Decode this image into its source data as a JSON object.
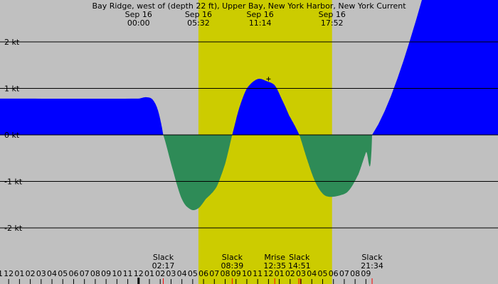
{
  "chart_data": {
    "type": "area",
    "title": "Bay Ridge, west of (depth 22 ft), Upper Bay, New York Harbor, New York Current",
    "unit": "kt",
    "ylim": [
      -2.9,
      2.9
    ],
    "y_ticks": [
      {
        "value": 2,
        "label": "2 kt"
      },
      {
        "value": 1,
        "label": "1 kt"
      },
      {
        "value": 0,
        "label": "0 kt"
      },
      {
        "value": -1,
        "label": "-1 kt"
      },
      {
        "value": -2,
        "label": "-2 kt"
      }
    ],
    "x_range_hours": [
      -12.8,
      33.2
    ],
    "x_ticks": [
      {
        "hour": -13,
        "label": "11"
      },
      {
        "hour": -12,
        "label": "12"
      },
      {
        "hour": -11,
        "label": "01"
      },
      {
        "hour": -10,
        "label": "02"
      },
      {
        "hour": -9,
        "label": "03"
      },
      {
        "hour": -8,
        "label": "04"
      },
      {
        "hour": -7,
        "label": "05"
      },
      {
        "hour": -6,
        "label": "06"
      },
      {
        "hour": -5,
        "label": "07"
      },
      {
        "hour": -4,
        "label": "08"
      },
      {
        "hour": -3,
        "label": "09"
      },
      {
        "hour": -2,
        "label": "10"
      },
      {
        "hour": -1,
        "label": "11"
      },
      {
        "hour": 0,
        "label": "12"
      },
      {
        "hour": 1,
        "label": "01"
      },
      {
        "hour": 2,
        "label": "02"
      },
      {
        "hour": 3,
        "label": "03"
      },
      {
        "hour": 4,
        "label": "04"
      },
      {
        "hour": 5,
        "label": "05"
      },
      {
        "hour": 6,
        "label": "06"
      },
      {
        "hour": 7,
        "label": "07"
      },
      {
        "hour": 8,
        "label": "08"
      },
      {
        "hour": 9,
        "label": "09"
      },
      {
        "hour": 10,
        "label": "10"
      },
      {
        "hour": 11,
        "label": "11"
      },
      {
        "hour": 12,
        "label": "12"
      },
      {
        "hour": 13,
        "label": "01"
      },
      {
        "hour": 14,
        "label": "02"
      },
      {
        "hour": 15,
        "label": "03"
      },
      {
        "hour": 16,
        "label": "04"
      },
      {
        "hour": 17,
        "label": "05"
      },
      {
        "hour": 18,
        "label": "06"
      },
      {
        "hour": 19,
        "label": "07"
      },
      {
        "hour": 20,
        "label": "08"
      },
      {
        "hour": 21,
        "label": "09"
      }
    ],
    "daylight": {
      "start_hour": 5.53,
      "end_hour": 17.87,
      "color": "#cccc00",
      "night_color": "#c0c0c0"
    },
    "top_labels": [
      {
        "hour": 0,
        "date": "Sep 16",
        "time": "00:00"
      },
      {
        "hour": 5.53,
        "date": "Sep 16",
        "time": "05:32"
      },
      {
        "hour": 11.23,
        "date": "Sep 16",
        "time": "11:14"
      },
      {
        "hour": 17.87,
        "date": "Sep 16",
        "time": "17:52"
      }
    ],
    "events": [
      {
        "hour": 2.28,
        "label": "Slack",
        "time": "02:17"
      },
      {
        "hour": 8.65,
        "label": "Slack",
        "time": "08:39"
      },
      {
        "hour": 12.58,
        "label": "Mrise",
        "time": "12:35"
      },
      {
        "hour": 14.85,
        "label": "Slack",
        "time": "14:51"
      },
      {
        "hour": 21.57,
        "label": "Slack",
        "time": "21:34"
      }
    ],
    "event_markers": [
      2.28,
      8.65,
      12.58,
      14.8,
      14.95,
      21.57
    ],
    "series": [
      {
        "flood_color": "#0000ff",
        "ebb_color": "#2e8b57",
        "x": [
          0,
          0.7,
          1.3,
          1.8,
          2.28,
          3.2,
          4.0,
          4.8,
          5.5,
          6.2,
          7.2,
          8.0,
          8.65,
          9.3,
          10.0,
          11.0,
          11.9,
          12.6,
          13.2,
          13.9,
          14.85,
          15.6,
          16.3,
          17.0,
          17.6,
          18.6,
          19.4,
          20.3,
          21.0,
          21.57
        ],
        "y": [
          0.78,
          0.81,
          0.76,
          0.52,
          0.0,
          -0.78,
          -1.38,
          -1.6,
          -1.58,
          -1.38,
          -1.12,
          -0.62,
          0.0,
          0.58,
          1.0,
          1.2,
          1.15,
          1.06,
          0.78,
          0.42,
          0.0,
          -0.55,
          -1.0,
          -1.26,
          -1.33,
          -1.3,
          -1.2,
          -0.85,
          -0.38,
          0.0
        ]
      }
    ]
  }
}
